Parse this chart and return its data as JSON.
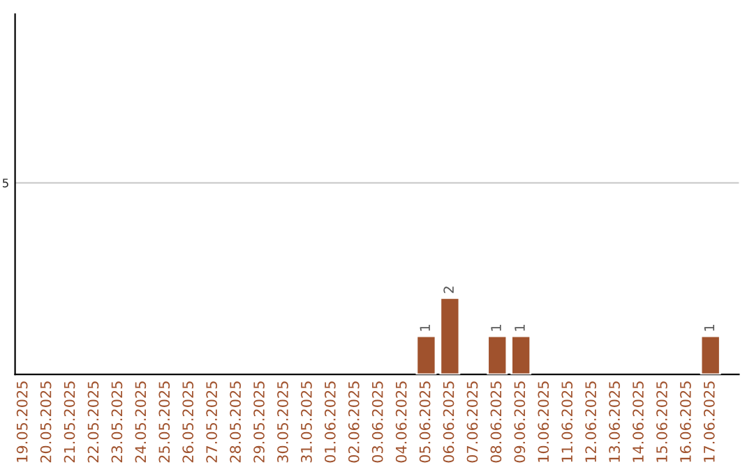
{
  "chart_data": {
    "type": "bar",
    "categories": [
      "19.05.2025",
      "20.05.2025",
      "21.05.2025",
      "22.05.2025",
      "23.05.2025",
      "24.05.2025",
      "25.05.2025",
      "26.05.2025",
      "27.05.2025",
      "28.05.2025",
      "29.05.2025",
      "30.05.2025",
      "31.05.2025",
      "01.06.2025",
      "02.06.2025",
      "03.06.2025",
      "04.06.2025",
      "05.06.2025",
      "06.06.2025",
      "07.06.2025",
      "08.06.2025",
      "09.06.2025",
      "10.06.2025",
      "11.06.2025",
      "12.06.2025",
      "13.06.2025",
      "14.06.2025",
      "15.06.2025",
      "16.06.2025",
      "17.06.2025"
    ],
    "values": [
      null,
      null,
      null,
      null,
      null,
      null,
      null,
      null,
      null,
      null,
      null,
      null,
      null,
      null,
      null,
      null,
      null,
      1,
      2,
      null,
      1,
      1,
      null,
      null,
      null,
      null,
      null,
      null,
      null,
      1
    ],
    "ylim": [
      0,
      9.4
    ],
    "yticks": [
      5
    ],
    "grid": "y",
    "value_labels": [
      null,
      null,
      null,
      null,
      null,
      null,
      null,
      null,
      null,
      null,
      null,
      null,
      null,
      null,
      null,
      null,
      null,
      "1",
      "2",
      null,
      "1",
      "1",
      null,
      null,
      null,
      null,
      null,
      null,
      null,
      "1"
    ],
    "color": "#a0522d"
  }
}
